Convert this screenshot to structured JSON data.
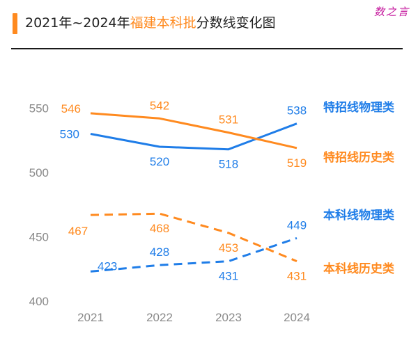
{
  "header": {
    "title_pre": "2021年~2024年",
    "title_highlight": "福建本科批",
    "title_post": "分数线变化图",
    "watermark": "数之言"
  },
  "chart_data": {
    "type": "line",
    "title": "2021年~2024年福建本科批分数线变化图",
    "categories": [
      "2021",
      "2022",
      "2023",
      "2024"
    ],
    "yticks": [
      400,
      450,
      500,
      550
    ],
    "ylim": [
      400,
      560
    ],
    "xlabel": "",
    "ylabel": "",
    "grid": false,
    "series": [
      {
        "name": "特招线物理类",
        "values": [
          530,
          520,
          518,
          538
        ],
        "color": "#1f7de8",
        "dashed": false,
        "labels": [
          "530",
          "520",
          "518",
          "538"
        ],
        "label_pos": [
          "left",
          "below",
          "below",
          "above"
        ]
      },
      {
        "name": "特招线历史类",
        "values": [
          546,
          542,
          531,
          519
        ],
        "color": "#ff8a1f",
        "dashed": false,
        "labels": [
          "546",
          "542",
          "531",
          "519"
        ],
        "label_pos": [
          "left-above",
          "above",
          "above",
          "below"
        ]
      },
      {
        "name": "本科线物理类",
        "values": [
          423,
          428,
          431,
          449
        ],
        "color": "#1f7de8",
        "dashed": true,
        "labels": [
          "423",
          "428",
          "431",
          "449"
        ],
        "label_pos": [
          "right",
          "above",
          "below",
          "above"
        ]
      },
      {
        "name": "本科线历史类",
        "values": [
          467,
          468,
          453,
          431
        ],
        "color": "#ff8a1f",
        "dashed": true,
        "labels": [
          "467",
          "468",
          "453",
          "431"
        ],
        "label_pos": [
          "below-left",
          "below",
          "below",
          "below"
        ]
      }
    ]
  }
}
